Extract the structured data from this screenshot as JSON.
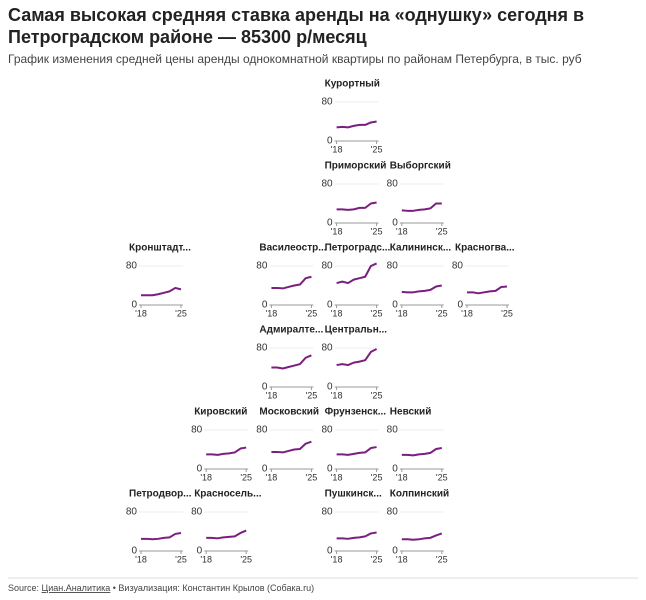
{
  "title": "Самая высокая средняя ставка аренды на «однушку» сегодня в Петроградском районе — 85300 р/месяц",
  "subtitle": "График изменения средней цены аренды однокомнатной квартиры по районам Петербурга, в тыс. руб",
  "source": {
    "label": "Source:",
    "link": "Циан.Аналитика",
    "credit": "• Визуализация: Константин Крылов (Собака.ru)"
  },
  "chart_data": [
    {
      "type": "line",
      "title": "Курортный",
      "x": [
        2018,
        2019,
        2020,
        2021,
        2022,
        2023,
        2024,
        2025
      ],
      "values": [
        28,
        29,
        28,
        31,
        33,
        33,
        38,
        40
      ],
      "color": "#7b1f7e",
      "xlim": [
        2018,
        2025
      ],
      "xticks": [
        {
          "value": 2018,
          "label": "'18"
        },
        {
          "value": 2025,
          "label": "'25"
        }
      ],
      "ylim": [
        0,
        80
      ],
      "yticks": [
        0,
        80
      ]
    },
    {
      "type": "line",
      "title": "Приморский",
      "x": [
        2018,
        2019,
        2020,
        2021,
        2022,
        2023,
        2024,
        2025
      ],
      "values": [
        28,
        28,
        27,
        28,
        31,
        31,
        40,
        42
      ],
      "color": "#7b1f7e",
      "xlim": [
        2018,
        2025
      ],
      "xticks": [
        {
          "value": 2018,
          "label": "'18"
        },
        {
          "value": 2025,
          "label": "'25"
        }
      ],
      "ylim": [
        0,
        80
      ],
      "yticks": [
        0,
        80
      ]
    },
    {
      "type": "line",
      "title": "Выборгский",
      "x": [
        2018,
        2019,
        2020,
        2021,
        2022,
        2023,
        2024,
        2025
      ],
      "values": [
        26,
        25,
        25,
        27,
        28,
        30,
        40,
        40
      ],
      "color": "#7b1f7e",
      "xlim": [
        2018,
        2025
      ],
      "xticks": [
        {
          "value": 2018,
          "label": "'18"
        },
        {
          "value": 2025,
          "label": "'25"
        }
      ],
      "ylim": [
        0,
        80
      ],
      "yticks": [
        0,
        80
      ]
    },
    {
      "type": "line",
      "title": "Кронштадт...",
      "x": [
        2018,
        2019,
        2020,
        2021,
        2022,
        2023,
        2024,
        2025
      ],
      "values": [
        20,
        20,
        20,
        22,
        25,
        28,
        35,
        32
      ],
      "color": "#7b1f7e",
      "xlim": [
        2018,
        2025
      ],
      "xticks": [
        {
          "value": 2018,
          "label": "'18"
        },
        {
          "value": 2025,
          "label": "'25"
        }
      ],
      "ylim": [
        0,
        80
      ],
      "yticks": [
        0,
        80
      ]
    },
    {
      "type": "line",
      "title": "Василеостр...",
      "x": [
        2018,
        2019,
        2020,
        2021,
        2022,
        2023,
        2024,
        2025
      ],
      "values": [
        35,
        35,
        34,
        37,
        40,
        42,
        55,
        58
      ],
      "color": "#7b1f7e",
      "xlim": [
        2018,
        2025
      ],
      "xticks": [
        {
          "value": 2018,
          "label": "'18"
        },
        {
          "value": 2025,
          "label": "'25"
        }
      ],
      "ylim": [
        0,
        80
      ],
      "yticks": [
        0,
        80
      ]
    },
    {
      "type": "line",
      "title": "Петроградс...",
      "x": [
        2018,
        2019,
        2020,
        2021,
        2022,
        2023,
        2024,
        2025
      ],
      "values": [
        45,
        48,
        45,
        52,
        55,
        58,
        80,
        85.3
      ],
      "color": "#7b1f7e",
      "xlim": [
        2018,
        2025
      ],
      "xticks": [
        {
          "value": 2018,
          "label": "'18"
        },
        {
          "value": 2025,
          "label": "'25"
        }
      ],
      "ylim": [
        0,
        80
      ],
      "yticks": [
        0,
        80
      ]
    },
    {
      "type": "line",
      "title": "Калининск...",
      "x": [
        2018,
        2019,
        2020,
        2021,
        2022,
        2023,
        2024,
        2025
      ],
      "values": [
        27,
        26,
        26,
        28,
        29,
        31,
        38,
        40
      ],
      "color": "#7b1f7e",
      "xlim": [
        2018,
        2025
      ],
      "xticks": [
        {
          "value": 2018,
          "label": "'18"
        },
        {
          "value": 2025,
          "label": "'25"
        }
      ],
      "ylim": [
        0,
        80
      ],
      "yticks": [
        0,
        80
      ]
    },
    {
      "type": "line",
      "title": "Красногва...",
      "x": [
        2018,
        2019,
        2020,
        2021,
        2022,
        2023,
        2024,
        2025
      ],
      "values": [
        26,
        26,
        24,
        26,
        28,
        29,
        37,
        38
      ],
      "color": "#7b1f7e",
      "xlim": [
        2018,
        2025
      ],
      "xticks": [
        {
          "value": 2018,
          "label": "'18"
        },
        {
          "value": 2025,
          "label": "'25"
        }
      ],
      "ylim": [
        0,
        80
      ],
      "yticks": [
        0,
        80
      ]
    },
    {
      "type": "line",
      "title": "Адмиралте...",
      "x": [
        2018,
        2019,
        2020,
        2021,
        2022,
        2023,
        2024,
        2025
      ],
      "values": [
        40,
        40,
        38,
        41,
        44,
        47,
        60,
        65
      ],
      "color": "#7b1f7e",
      "xlim": [
        2018,
        2025
      ],
      "xticks": [
        {
          "value": 2018,
          "label": "'18"
        },
        {
          "value": 2025,
          "label": "'25"
        }
      ],
      "ylim": [
        0,
        80
      ],
      "yticks": [
        0,
        80
      ]
    },
    {
      "type": "line",
      "title": "Центральн...",
      "x": [
        2018,
        2019,
        2020,
        2021,
        2022,
        2023,
        2024,
        2025
      ],
      "values": [
        45,
        47,
        45,
        50,
        52,
        55,
        72,
        78
      ],
      "color": "#7b1f7e",
      "xlim": [
        2018,
        2025
      ],
      "xticks": [
        {
          "value": 2018,
          "label": "'18"
        },
        {
          "value": 2025,
          "label": "'25"
        }
      ],
      "ylim": [
        0,
        80
      ],
      "yticks": [
        0,
        80
      ]
    },
    {
      "type": "line",
      "title": "Кировский",
      "x": [
        2018,
        2019,
        2020,
        2021,
        2022,
        2023,
        2024,
        2025
      ],
      "values": [
        30,
        30,
        29,
        31,
        32,
        34,
        42,
        44
      ],
      "color": "#7b1f7e",
      "xlim": [
        2018,
        2025
      ],
      "xticks": [
        {
          "value": 2018,
          "label": "'18"
        },
        {
          "value": 2025,
          "label": "'25"
        }
      ],
      "ylim": [
        0,
        80
      ],
      "yticks": [
        0,
        80
      ]
    },
    {
      "type": "line",
      "title": "Московский",
      "x": [
        2018,
        2019,
        2020,
        2021,
        2022,
        2023,
        2024,
        2025
      ],
      "values": [
        35,
        35,
        34,
        37,
        40,
        41,
        52,
        56
      ],
      "color": "#7b1f7e",
      "xlim": [
        2018,
        2025
      ],
      "xticks": [
        {
          "value": 2018,
          "label": "'18"
        },
        {
          "value": 2025,
          "label": "'25"
        }
      ],
      "ylim": [
        0,
        80
      ],
      "yticks": [
        0,
        80
      ]
    },
    {
      "type": "line",
      "title": "Фрунзенск...",
      "x": [
        2018,
        2019,
        2020,
        2021,
        2022,
        2023,
        2024,
        2025
      ],
      "values": [
        30,
        30,
        29,
        31,
        33,
        34,
        43,
        45
      ],
      "color": "#7b1f7e",
      "xlim": [
        2018,
        2025
      ],
      "xticks": [
        {
          "value": 2018,
          "label": "'18"
        },
        {
          "value": 2025,
          "label": "'25"
        }
      ],
      "ylim": [
        0,
        80
      ],
      "yticks": [
        0,
        80
      ]
    },
    {
      "type": "line",
      "title": "Невский",
      "x": [
        2018,
        2019,
        2020,
        2021,
        2022,
        2023,
        2024,
        2025
      ],
      "values": [
        29,
        29,
        28,
        30,
        31,
        33,
        41,
        43
      ],
      "color": "#7b1f7e",
      "xlim": [
        2018,
        2025
      ],
      "xticks": [
        {
          "value": 2018,
          "label": "'18"
        },
        {
          "value": 2025,
          "label": "'25"
        }
      ],
      "ylim": [
        0,
        80
      ],
      "yticks": [
        0,
        80
      ]
    },
    {
      "type": "line",
      "title": "Петродвор...",
      "x": [
        2018,
        2019,
        2020,
        2021,
        2022,
        2023,
        2024,
        2025
      ],
      "values": [
        25,
        25,
        24,
        25,
        27,
        28,
        35,
        37
      ],
      "color": "#7b1f7e",
      "xlim": [
        2018,
        2025
      ],
      "xticks": [
        {
          "value": 2018,
          "label": "'18"
        },
        {
          "value": 2025,
          "label": "'25"
        }
      ],
      "ylim": [
        0,
        80
      ],
      "yticks": [
        0,
        80
      ]
    },
    {
      "type": "line",
      "title": "Красносель...",
      "x": [
        2018,
        2019,
        2020,
        2021,
        2022,
        2023,
        2024,
        2025
      ],
      "values": [
        27,
        27,
        26,
        28,
        29,
        30,
        37,
        42
      ],
      "color": "#7b1f7e",
      "xlim": [
        2018,
        2025
      ],
      "xticks": [
        {
          "value": 2018,
          "label": "'18"
        },
        {
          "value": 2025,
          "label": "'25"
        }
      ],
      "ylim": [
        0,
        80
      ],
      "yticks": [
        0,
        80
      ]
    },
    {
      "type": "line",
      "title": "Пушкинск...",
      "x": [
        2018,
        2019,
        2020,
        2021,
        2022,
        2023,
        2024,
        2025
      ],
      "values": [
        26,
        26,
        25,
        27,
        28,
        30,
        36,
        38
      ],
      "color": "#7b1f7e",
      "xlim": [
        2018,
        2025
      ],
      "xticks": [
        {
          "value": 2018,
          "label": "'18"
        },
        {
          "value": 2025,
          "label": "'25"
        }
      ],
      "ylim": [
        0,
        80
      ],
      "yticks": [
        0,
        80
      ]
    },
    {
      "type": "line",
      "title": "Колпинский",
      "x": [
        2018,
        2019,
        2020,
        2021,
        2022,
        2023,
        2024,
        2025
      ],
      "values": [
        24,
        24,
        23,
        24,
        26,
        27,
        32,
        36
      ],
      "color": "#7b1f7e",
      "xlim": [
        2018,
        2025
      ],
      "xticks": [
        {
          "value": 2018,
          "label": "'18"
        },
        {
          "value": 2025,
          "label": "'25"
        }
      ],
      "ylim": [
        0,
        80
      ],
      "yticks": [
        0,
        80
      ]
    }
  ]
}
